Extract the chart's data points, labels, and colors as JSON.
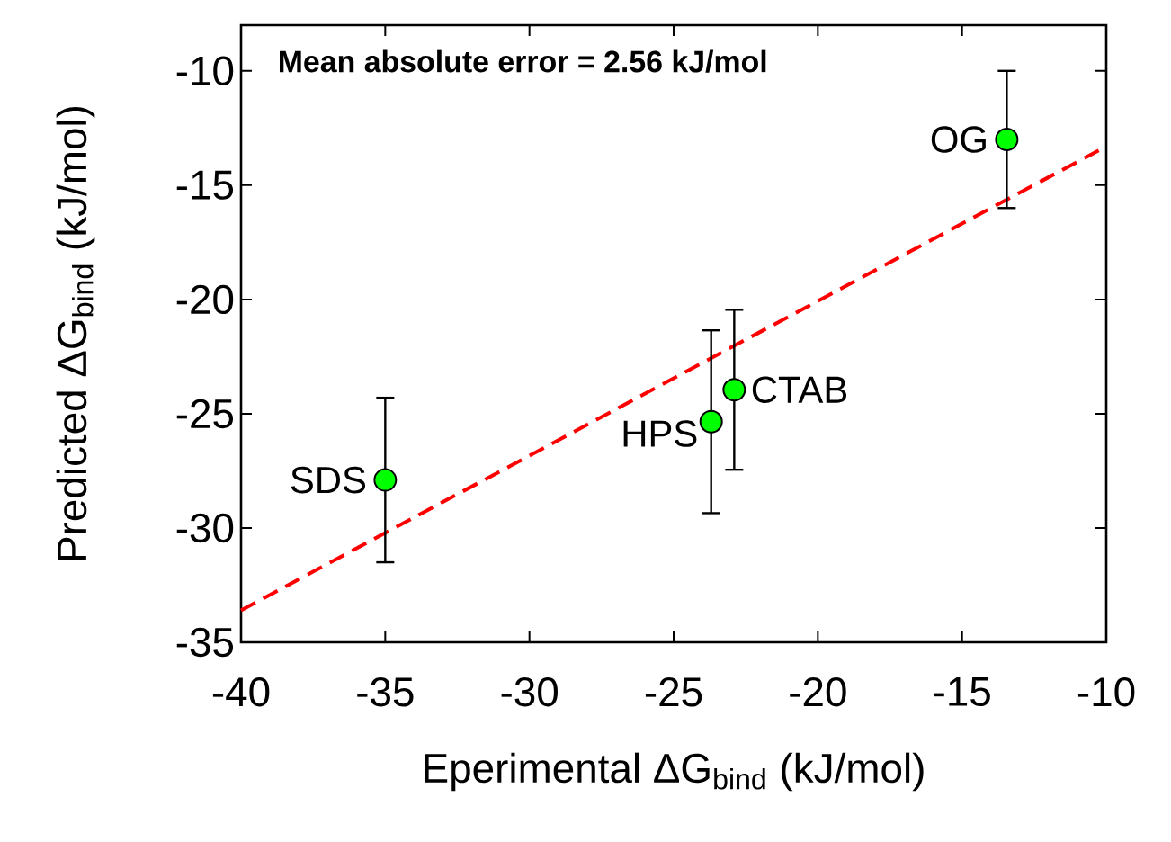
{
  "chart_data": {
    "type": "scatter",
    "xlabel": "Eperimental ΔG$_{bind}$ (kJ/mol)",
    "ylabel": "Predicted ΔG$_{bind}$ (kJ/mol)",
    "xlim": [
      -40,
      -10
    ],
    "ylim": [
      -35,
      -8
    ],
    "xticks": [
      -40,
      -35,
      -30,
      -25,
      -20,
      -15,
      -10
    ],
    "yticks": [
      -35,
      -30,
      -25,
      -20,
      -15,
      -10
    ],
    "grid": false,
    "series": [
      {
        "type": "line",
        "color": "#ff0000",
        "line_style": "dashed",
        "marker": "none",
        "x": [
          -40,
          -10
        ],
        "values": [
          -33.6,
          -13.3
        ]
      },
      {
        "type": "scatter",
        "color": "#00ff00",
        "marker": "circle",
        "x": [
          -35,
          -23.7,
          -22.9,
          -13.45
        ],
        "values": [
          -27.9,
          -25.35,
          -23.95,
          -13.0
        ],
        "errors": [
          3.6,
          4.0,
          3.5,
          3.0
        ]
      }
    ],
    "annotations": [
      "Mean absolute error = 2.56 kJ/mol",
      {
        "text": "SDS",
        "x": -35,
        "y": -27.9
      },
      {
        "text": "HPS",
        "x": -23.7,
        "y": -25.35
      },
      {
        "text": "CTAB",
        "x": -22.9,
        "y": -23.95
      },
      {
        "text": "OG",
        "x": -13.45,
        "y": -13.0
      }
    ]
  }
}
